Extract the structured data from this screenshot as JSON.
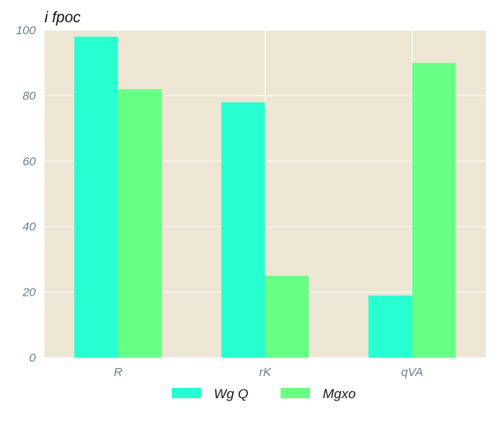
{
  "chart_data": {
    "type": "bar",
    "title": "i fpoc",
    "xlabel": "",
    "ylabel": "",
    "categories": [
      "R",
      "rK",
      "qVA"
    ],
    "series": [
      {
        "name": "Wg Q",
        "values": [
          98,
          78,
          19
        ],
        "color": "#28ffd0"
      },
      {
        "name": "Mgxo",
        "values": [
          82,
          25,
          90
        ],
        "color": "#68ff85"
      }
    ],
    "ylim": [
      0,
      100
    ],
    "yticks": [
      0,
      20,
      40,
      60,
      80,
      100
    ],
    "grid": true,
    "legend_position": "bottom-center",
    "background_color": "#ede6d4",
    "grid_color": "#ffffff"
  }
}
